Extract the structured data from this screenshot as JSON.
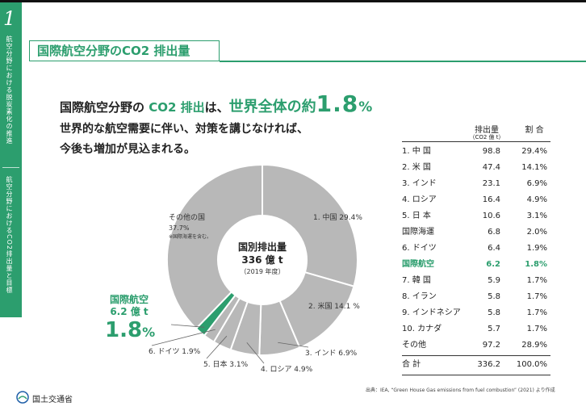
{
  "sidebar": {
    "chapter": "1",
    "section1": "航空分野における脱炭素化の推進",
    "section2": "航空分野におけるCO2排出量と目標"
  },
  "header": {
    "title": "国際航空分野のCO2 排出量"
  },
  "headline": {
    "part1": "国際航空分野の ",
    "part2": "CO2 排出",
    "part3": "は、",
    "part4": "世界全体の約",
    "part5": "1.8",
    "part6": "%",
    "line2": "世界的な航空需要に伴い、対策を講じなければ、",
    "line3": "今後も増加が見込まれる。"
  },
  "chart_data": {
    "type": "pie",
    "center": {
      "title": "国別排出量",
      "total": "336 億 t",
      "year": "（2019 年度）"
    },
    "slices": [
      {
        "label": "1. 中国 29.4%",
        "value": 29.4,
        "color": "#b8b8b8"
      },
      {
        "label": "2. 米国 14.1 %",
        "value": 14.1,
        "color": "#b8b8b8"
      },
      {
        "label": "3. インド 6.9%",
        "value": 6.9,
        "color": "#b8b8b8"
      },
      {
        "label": "4. ロシア 4.9%",
        "value": 4.9,
        "color": "#b8b8b8"
      },
      {
        "label": "5. 日本 3.1%",
        "value": 3.1,
        "color": "#b8b8b8"
      },
      {
        "label": "6. ドイツ 1.9%",
        "value": 1.9,
        "color": "#b8b8b8"
      },
      {
        "label": "国際航空",
        "value": 1.8,
        "color": "#2c9e6e"
      },
      {
        "label": "その他の国",
        "value": 37.7,
        "color": "#b8b8b8"
      }
    ],
    "other_label": {
      "name": "その他の国",
      "pct": "37.7%",
      "note": "※国際海運を含む。"
    },
    "callout": {
      "name": "国際航空",
      "amount": "6.2 億 t",
      "pct": "1.8",
      "unit": "%"
    }
  },
  "table": {
    "headers": {
      "value": "排出量",
      "unit": "（CO2 億 t）",
      "share": "割 合"
    },
    "rows": [
      {
        "name": "1. 中 国",
        "value": "98.8",
        "share": "29.4%",
        "highlight": false
      },
      {
        "name": "2. 米 国",
        "value": "47.4",
        "share": "14.1%",
        "highlight": false
      },
      {
        "name": "3. インド",
        "value": "23.1",
        "share": "6.9%",
        "highlight": false
      },
      {
        "name": "4. ロシア",
        "value": "16.4",
        "share": "4.9%",
        "highlight": false
      },
      {
        "name": "5. 日 本",
        "value": "10.6",
        "share": "3.1%",
        "highlight": false
      },
      {
        "name": "    国際海運",
        "value": "6.8",
        "share": "2.0%",
        "highlight": false
      },
      {
        "name": "6. ドイツ",
        "value": "6.4",
        "share": "1.9%",
        "highlight": false
      },
      {
        "name": "    国際航空",
        "value": "6.2",
        "share": "1.8%",
        "highlight": true
      },
      {
        "name": "7. 韓 国",
        "value": "5.9",
        "share": "1.7%",
        "highlight": false
      },
      {
        "name": "8. イラン",
        "value": "5.8",
        "share": "1.7%",
        "highlight": false
      },
      {
        "name": "9. インドネシア",
        "value": "5.8",
        "share": "1.7%",
        "highlight": false
      },
      {
        "name": "10. カナダ",
        "value": "5.7",
        "share": "1.7%",
        "highlight": false
      },
      {
        "name": "    その他",
        "value": "97.2",
        "share": "28.9%",
        "highlight": false
      }
    ],
    "total": {
      "name": "    合 計",
      "value": "336.2",
      "share": "100.0%"
    }
  },
  "source": "出典：IEA, “Green House Gas emissions from fuel combustion” (2021) より作成",
  "footer": {
    "org": "国土交通省"
  },
  "colors": {
    "accent": "#2c9e6e",
    "slice": "#b8b8b8"
  }
}
